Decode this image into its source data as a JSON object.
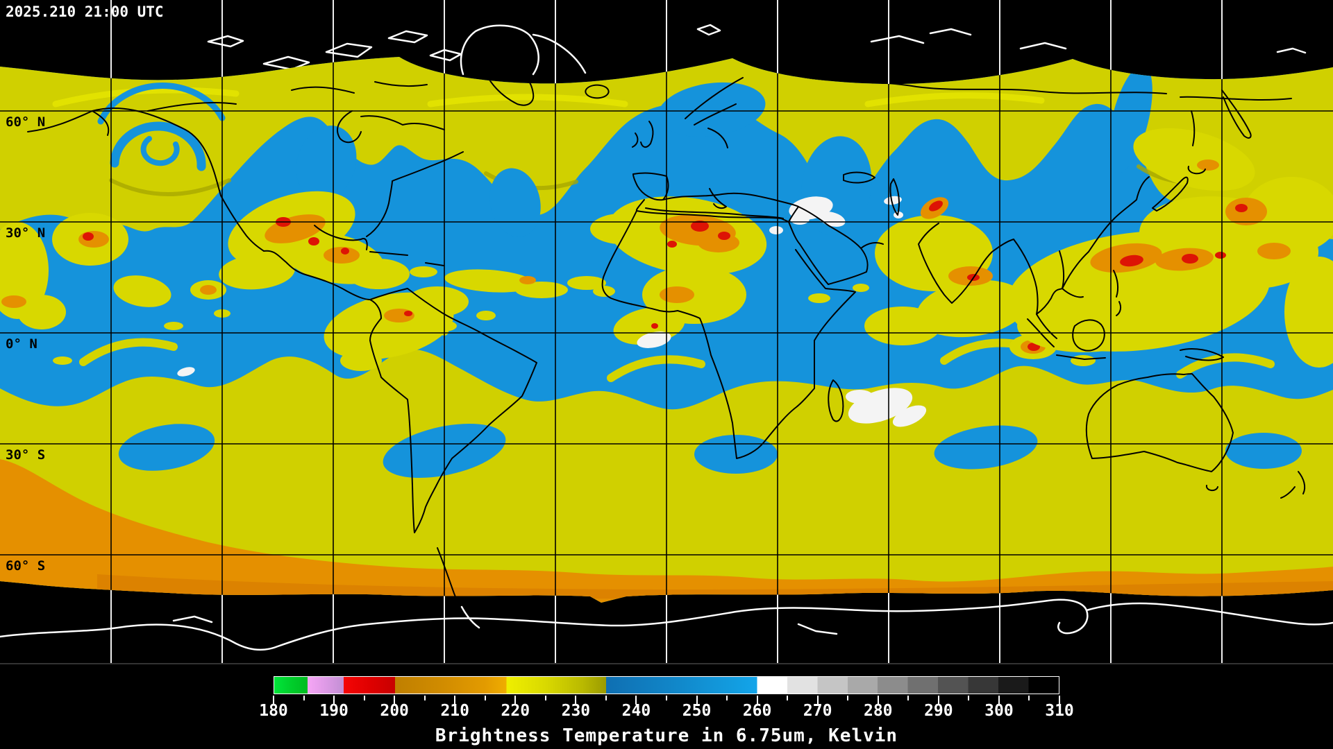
{
  "header": {
    "timestamp": "2025.210 21:00 UTC"
  },
  "map": {
    "latitude_labels": [
      {
        "text": "60° N"
      },
      {
        "text": "30° N"
      },
      {
        "text": "0° N"
      },
      {
        "text": "30° S"
      },
      {
        "text": "60° S"
      }
    ],
    "grid_spacing_deg": 30,
    "palette": {
      "void_background": "#000000",
      "moist_upper_air_blue": "#1593DB",
      "cold_cloud_yellow": "#D0D000",
      "colder_cloud_olive": "#A8A800",
      "very_cold_cloud_orange": "#E59000",
      "extreme_cold_cloud_red": "#DD1405",
      "warm_dry_white": "#F4F4F4",
      "coastline_on_data": "#000000",
      "coastline_on_void": "#FFFFFF",
      "gridline_on_data": "#000000",
      "gridline_on_void": "#FFFFFF"
    }
  },
  "colorbar": {
    "caption": "Brightness Temperature in 6.75um, Kelvin",
    "min": 180,
    "max": 310,
    "major_ticks": [
      180,
      190,
      200,
      210,
      220,
      230,
      240,
      250,
      260,
      270,
      280,
      290,
      300,
      310
    ],
    "minor_ticks": [
      185,
      195,
      205,
      215,
      225,
      235,
      245,
      255,
      265,
      275,
      285,
      295,
      305
    ],
    "stops": [
      {
        "v": 180,
        "c": "#00E63A"
      },
      {
        "v": 183,
        "c": "#00CC2A"
      },
      {
        "v": 185.5,
        "c": "#00BC22"
      },
      {
        "v": 185.5,
        "c": "#F6A6F6"
      },
      {
        "v": 188.5,
        "c": "#DE9AE6"
      },
      {
        "v": 191.5,
        "c": "#C28FD4"
      },
      {
        "v": 191.5,
        "c": "#F50505"
      },
      {
        "v": 196,
        "c": "#DE0000"
      },
      {
        "v": 200,
        "c": "#C80000"
      },
      {
        "v": 200,
        "c": "#BF7F00"
      },
      {
        "v": 208,
        "c": "#D18C00"
      },
      {
        "v": 215,
        "c": "#E39B00"
      },
      {
        "v": 218.5,
        "c": "#EFAD00"
      },
      {
        "v": 218.5,
        "c": "#EFEF00"
      },
      {
        "v": 225,
        "c": "#D9D900"
      },
      {
        "v": 231,
        "c": "#BABA00"
      },
      {
        "v": 235,
        "c": "#9B9B00"
      },
      {
        "v": 235,
        "c": "#0F6FB2"
      },
      {
        "v": 246,
        "c": "#1186C8"
      },
      {
        "v": 256,
        "c": "#129CDF"
      },
      {
        "v": 260,
        "c": "#13A5EA"
      },
      {
        "v": 260,
        "c": "#FFFFFF"
      },
      {
        "v": 265,
        "c": "#FFFFFF"
      },
      {
        "v": 265,
        "c": "#E2E2E2"
      },
      {
        "v": 270,
        "c": "#E2E2E2"
      },
      {
        "v": 270,
        "c": "#C5C5C5"
      },
      {
        "v": 275,
        "c": "#C5C5C5"
      },
      {
        "v": 275,
        "c": "#A9A9A9"
      },
      {
        "v": 280,
        "c": "#A9A9A9"
      },
      {
        "v": 280,
        "c": "#8C8C8C"
      },
      {
        "v": 285,
        "c": "#8C8C8C"
      },
      {
        "v": 285,
        "c": "#707070"
      },
      {
        "v": 290,
        "c": "#707070"
      },
      {
        "v": 290,
        "c": "#535353"
      },
      {
        "v": 295,
        "c": "#535353"
      },
      {
        "v": 295,
        "c": "#373737"
      },
      {
        "v": 300,
        "c": "#373737"
      },
      {
        "v": 300,
        "c": "#1A1A1A"
      },
      {
        "v": 305,
        "c": "#1A1A1A"
      },
      {
        "v": 305,
        "c": "#000000"
      },
      {
        "v": 310,
        "c": "#000000"
      }
    ]
  },
  "chart_data": {
    "type": "heatmap",
    "title": "Brightness Temperature in 6.75um, Kelvin",
    "timestamp": "2025.210 21:00 UTC",
    "colorbar_range": [
      180,
      310
    ],
    "colorbar_tick_labels": [
      "180",
      "190",
      "200",
      "210",
      "220",
      "230",
      "240",
      "250",
      "260",
      "270",
      "280",
      "290",
      "300",
      "310"
    ],
    "colorbar_segments": [
      {
        "from": 180,
        "to": 185.5,
        "color_name": "green"
      },
      {
        "from": 185.5,
        "to": 191.5,
        "color_name": "violet"
      },
      {
        "from": 191.5,
        "to": 200,
        "color_name": "red"
      },
      {
        "from": 200,
        "to": 218.5,
        "color_name": "orange"
      },
      {
        "from": 218.5,
        "to": 235,
        "color_name": "yellow-to-olive"
      },
      {
        "from": 235,
        "to": 260,
        "color_name": "blue"
      },
      {
        "from": 260,
        "to": 310,
        "color_name": "white-to-black grayscale steps"
      }
    ],
    "map_extent": {
      "lon": [
        -180,
        180
      ],
      "lat": [
        -90,
        90
      ]
    },
    "data_coverage_lat": [
      -70,
      70
    ],
    "graticule_labels": [
      "60° N",
      "30° N",
      "0° N",
      "30° S",
      "60° S"
    ],
    "grid_spacing_deg": 30
  }
}
